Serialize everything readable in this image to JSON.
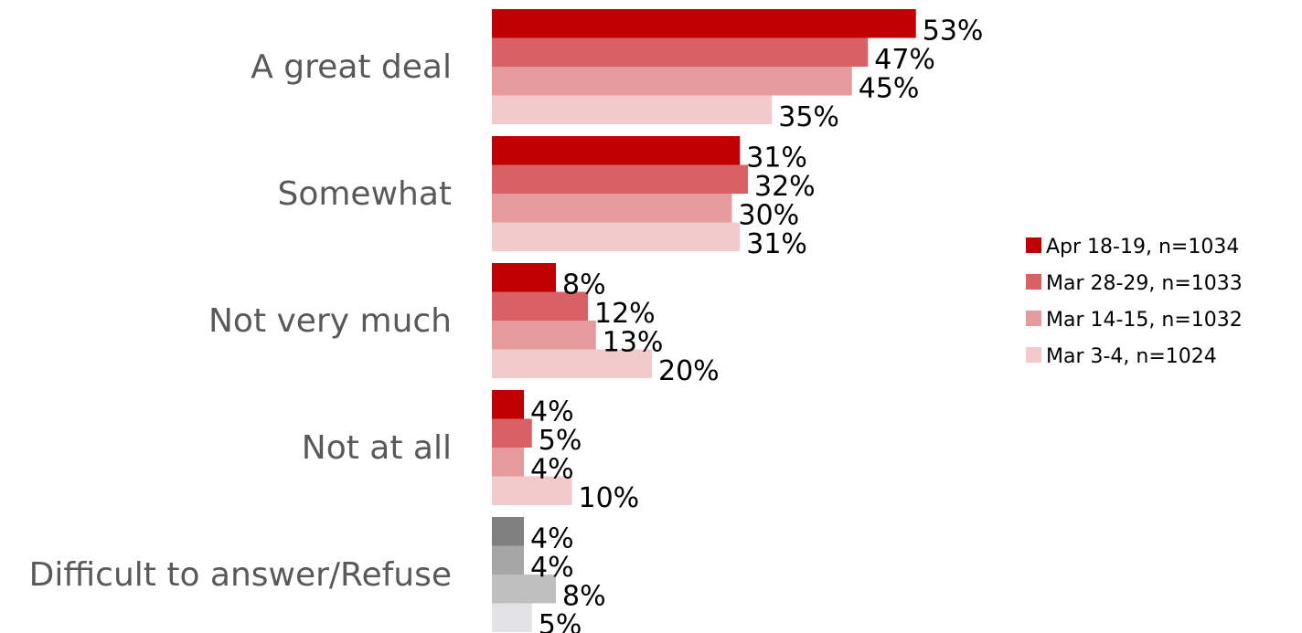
{
  "chart_data": {
    "type": "bar",
    "orientation": "horizontal",
    "unit": "%",
    "categories": [
      "A great deal",
      "Somewhat",
      "Not very much",
      "Not at all",
      "Difficult to answer/Refuse"
    ],
    "series": [
      {
        "name": "Apr 18-19, n=1034",
        "color": "#c00000",
        "values": [
          53,
          31,
          8,
          4,
          4
        ]
      },
      {
        "name": "Mar 28-29, n=1033",
        "color": "#d96065",
        "values": [
          47,
          32,
          12,
          5,
          4
        ]
      },
      {
        "name": "Mar 14-15, n=1032",
        "color": "#e69a9c",
        "values": [
          45,
          30,
          13,
          4,
          8
        ]
      },
      {
        "name": "Mar 3-4, n=1024",
        "color": "#f2cacb",
        "values": [
          35,
          31,
          20,
          10,
          5
        ]
      }
    ],
    "special_category_colors": {
      "Difficult to answer/Refuse": [
        "#808080",
        "#a6a6a6",
        "#bfbfbf",
        "#e3e3e5"
      ]
    },
    "value_labels": [
      [
        "53%",
        "47%",
        "45%",
        "35%"
      ],
      [
        "31%",
        "32%",
        "30%",
        "31%"
      ],
      [
        "8%",
        "12%",
        "13%",
        "20%"
      ],
      [
        "4%",
        "5%",
        "4%",
        "10%"
      ],
      [
        "4%",
        "4%",
        "8%",
        "5%"
      ]
    ],
    "xlim": [
      0,
      60
    ],
    "grid": false,
    "legend_position": "right"
  }
}
